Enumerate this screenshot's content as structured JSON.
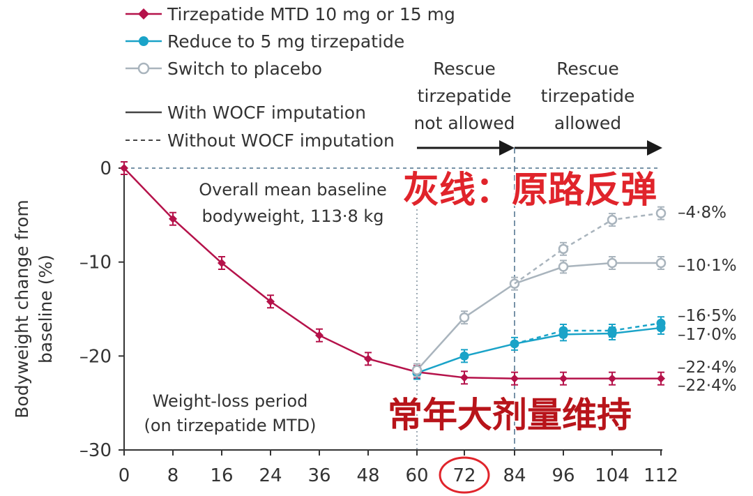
{
  "chart_data": {
    "type": "line",
    "ylabel": "Bodyweight change from baseline (%)",
    "xlabel": "",
    "xticks": [
      0,
      8,
      16,
      24,
      36,
      48,
      60,
      72,
      84,
      96,
      104,
      112
    ],
    "yticks": [
      0,
      -10,
      -20,
      -30
    ],
    "xlim": [
      0,
      112
    ],
    "ylim": [
      -30,
      0
    ],
    "series": [
      {
        "name": "Tirzepatide MTD 10 mg or 15 mg",
        "color": "#b5124a",
        "style": "solid",
        "marker": "diamond",
        "x": [
          0,
          8,
          16,
          24,
          36,
          48,
          60,
          72,
          84,
          96,
          104,
          112
        ],
        "y": [
          0,
          -5.4,
          -10.1,
          -14.2,
          -17.8,
          -20.3,
          -21.7,
          -22.3,
          -22.4,
          -22.4,
          -22.4,
          -22.4
        ]
      },
      {
        "name": "Reduce to 5 mg tirzepatide",
        "color": "#1aa3c8",
        "style": "solid",
        "marker": "filled-circle",
        "x": [
          60,
          72,
          84,
          96,
          104,
          112
        ],
        "y": [
          -21.8,
          -20.0,
          -18.7,
          -17.7,
          -17.6,
          -17.0
        ]
      },
      {
        "name": "Reduce to 5 mg tirzepatide (without WOCF)",
        "color": "#1aa3c8",
        "style": "dashed",
        "marker": "filled-circle",
        "x": [
          84,
          96,
          104,
          112
        ],
        "y": [
          -18.7,
          -17.3,
          -17.3,
          -16.5
        ]
      },
      {
        "name": "Switch to placebo",
        "color": "#a9b4bd",
        "style": "solid",
        "marker": "open-circle",
        "x": [
          60,
          72,
          84,
          96,
          104,
          112
        ],
        "y": [
          -21.5,
          -15.9,
          -12.3,
          -10.5,
          -10.1,
          -10.1
        ]
      },
      {
        "name": "Switch to placebo (without WOCF)",
        "color": "#a9b4bd",
        "style": "dashed",
        "marker": "open-circle",
        "x": [
          84,
          96,
          104,
          112
        ],
        "y": [
          -12.3,
          -8.6,
          -5.5,
          -4.8
        ]
      }
    ],
    "legend": [
      {
        "label": "Tirzepatide MTD 10 mg or 15 mg",
        "kind": "red-diamond"
      },
      {
        "label": "Reduce to 5 mg tirzepatide",
        "kind": "blue-dot"
      },
      {
        "label": "Switch to placebo",
        "kind": "grey-open"
      },
      {
        "label": "With WOCF imputation",
        "kind": "solid"
      },
      {
        "label": "Without WOCF imputation",
        "kind": "dashed"
      }
    ],
    "end_labels": [
      "–4·8%",
      "–10·1%",
      "–16·5%",
      "–17·0%",
      "–22·4%",
      "–22·4%"
    ],
    "ytick_labels": [
      "0",
      "–10",
      "–20",
      "–30"
    ],
    "notes": {
      "baseline_line1": "Overall mean baseline",
      "baseline_line2": "bodyweight, 113·8 kg",
      "period_line1": "Weight-loss period",
      "period_line2": "(on tirzepatide MTD)",
      "rescue_na": [
        "Rescue",
        "tirzepatide",
        "not allowed"
      ],
      "rescue_ok": [
        "Rescue",
        "tirzepatide",
        "allowed"
      ]
    },
    "annotations": {
      "grey_line": "灰线：原路反弹",
      "maintain": "常年大剂量维持"
    },
    "highlight_tick": 72
  }
}
